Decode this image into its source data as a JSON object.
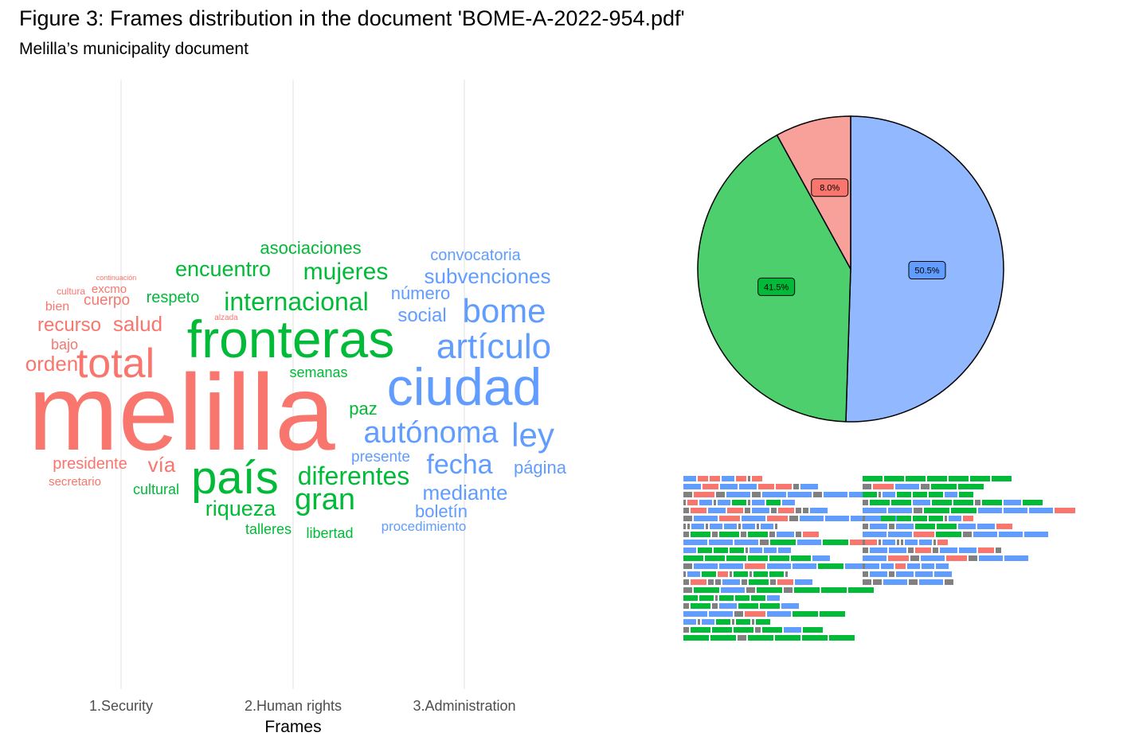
{
  "title": "Figure 3: Frames distribution in the document 'BOME-A-2022-954.pdf'",
  "subtitle": "Melilla’s municipality document",
  "chart_data": [
    {
      "type": "wordcloud",
      "xlabel": "Frames",
      "ylabel": "",
      "categories": [
        "1.Security",
        "2.Human rights",
        "3.Administration"
      ],
      "colors": {
        "1.Security": "#F8766D",
        "2.Human rights": "#00BA38",
        "3.Administration": "#619CFF"
      },
      "words": [
        {
          "text": "melilla",
          "frame": "1.Security"
        },
        {
          "text": "total",
          "frame": "1.Security"
        },
        {
          "text": "orden",
          "frame": "1.Security"
        },
        {
          "text": "recurso",
          "frame": "1.Security"
        },
        {
          "text": "salud",
          "frame": "1.Security"
        },
        {
          "text": "vía",
          "frame": "1.Security"
        },
        {
          "text": "presidente",
          "frame": "1.Security"
        },
        {
          "text": "cuerpo",
          "frame": "1.Security"
        },
        {
          "text": "bajo",
          "frame": "1.Security"
        },
        {
          "text": "bien",
          "frame": "1.Security"
        },
        {
          "text": "excmo",
          "frame": "1.Security"
        },
        {
          "text": "secretario",
          "frame": "1.Security"
        },
        {
          "text": "cultura",
          "frame": "1.Security"
        },
        {
          "text": "continuación",
          "frame": "1.Security"
        },
        {
          "text": "alzada",
          "frame": "1.Security"
        },
        {
          "text": "fronteras",
          "frame": "2.Human rights"
        },
        {
          "text": "país",
          "frame": "2.Human rights"
        },
        {
          "text": "internacional",
          "frame": "2.Human rights"
        },
        {
          "text": "mujeres",
          "frame": "2.Human rights"
        },
        {
          "text": "encuentro",
          "frame": "2.Human rights"
        },
        {
          "text": "diferentes",
          "frame": "2.Human rights"
        },
        {
          "text": "gran",
          "frame": "2.Human rights"
        },
        {
          "text": "riqueza",
          "frame": "2.Human rights"
        },
        {
          "text": "asociaciones",
          "frame": "2.Human rights"
        },
        {
          "text": "respeto",
          "frame": "2.Human rights"
        },
        {
          "text": "semanas",
          "frame": "2.Human rights"
        },
        {
          "text": "paz",
          "frame": "2.Human rights"
        },
        {
          "text": "cultural",
          "frame": "2.Human rights"
        },
        {
          "text": "talleres",
          "frame": "2.Human rights"
        },
        {
          "text": "libertad",
          "frame": "2.Human rights"
        },
        {
          "text": "ciudad",
          "frame": "3.Administration"
        },
        {
          "text": "artículo",
          "frame": "3.Administration"
        },
        {
          "text": "bome",
          "frame": "3.Administration"
        },
        {
          "text": "autónoma",
          "frame": "3.Administration"
        },
        {
          "text": "ley",
          "frame": "3.Administration"
        },
        {
          "text": "fecha",
          "frame": "3.Administration"
        },
        {
          "text": "subvenciones",
          "frame": "3.Administration"
        },
        {
          "text": "convocatoria",
          "frame": "3.Administration"
        },
        {
          "text": "número",
          "frame": "3.Administration"
        },
        {
          "text": "social",
          "frame": "3.Administration"
        },
        {
          "text": "mediante",
          "frame": "3.Administration"
        },
        {
          "text": "boletín",
          "frame": "3.Administration"
        },
        {
          "text": "página",
          "frame": "3.Administration"
        },
        {
          "text": "presente",
          "frame": "3.Administration"
        },
        {
          "text": "procedimiento",
          "frame": "3.Administration"
        }
      ]
    },
    {
      "type": "pie",
      "series": [
        {
          "category": "3.Administration",
          "value": 50.5,
          "label": "50.5%",
          "color": "#92B8FF"
        },
        {
          "category": "2.Human rights",
          "value": 41.5,
          "label": "41.5%",
          "color": "#4ECF6E"
        },
        {
          "category": "1.Security",
          "value": 8.0,
          "label": "8.0%",
          "color": "#F8A09A"
        }
      ],
      "label_colors": {
        "3.Administration": "#619CFF",
        "2.Human rights": "#00BA38",
        "1.Security": "#F8766D"
      }
    },
    {
      "type": "table",
      "description_of_cells": "sentence/frame mosaic; codes: 1=Security, 2=Human rights, 3=Administration, 0=none",
      "colors": {
        "0": "#808080",
        "1": "#F8766D",
        "2": "#00BA38",
        "3": "#619CFF"
      },
      "columns": [
        {
          "rows": [
            [
              3,
              1,
              1,
              3,
              1,
              0,
              1
            ],
            [
              3,
              1,
              3,
              3,
              1,
              1,
              0,
              3
            ],
            [
              0,
              1,
              0,
              3,
              0,
              3,
              3,
              0,
              3,
              3
            ],
            [
              0,
              1,
              3,
              0,
              3,
              2,
              0,
              3,
              2,
              3
            ],
            [
              0,
              1,
              3,
              1,
              0,
              3,
              0,
              1,
              0,
              0,
              3
            ],
            [
              0,
              3,
              1,
              3,
              1,
              0,
              3,
              3,
              3,
              3
            ],
            [
              0,
              0,
              3,
              0,
              3,
              3,
              0,
              3,
              0,
              3,
              0
            ],
            [
              0,
              2,
              0,
              2,
              0,
              2,
              0,
              3,
              0,
              1
            ],
            [
              3,
              3,
              3,
              0,
              2,
              3,
              2,
              1
            ],
            [
              3,
              2,
              2,
              2,
              0,
              3,
              3,
              3
            ],
            [
              2,
              2,
              2,
              2,
              2,
              2,
              3
            ],
            [
              0,
              3,
              3,
              1,
              3,
              3,
              2,
              3
            ],
            [
              0,
              3,
              2,
              1,
              0,
              2,
              0,
              2,
              2,
              0
            ],
            [
              0,
              1,
              0,
              0,
              3,
              0,
              2,
              0,
              1,
              3
            ],
            [
              0,
              2,
              3,
              0,
              2,
              0,
              2,
              2,
              2
            ],
            [
              2,
              2,
              0,
              2,
              2,
              2,
              3
            ],
            [
              0,
              2,
              0,
              3,
              2,
              2,
              3
            ],
            [
              3,
              3,
              0,
              1,
              3,
              2,
              2
            ],
            [
              3,
              0,
              3,
              2,
              0,
              2,
              0,
              2
            ],
            [
              0,
              2,
              2,
              2,
              0,
              2,
              3,
              2
            ],
            [
              2,
              2,
              0,
              2,
              2,
              2,
              2
            ]
          ]
        },
        {
          "rows": [
            [
              2,
              2,
              2,
              2,
              2,
              2,
              2
            ],
            [
              0,
              1,
              3,
              0,
              2,
              2
            ],
            [
              2,
              0,
              3,
              2,
              2,
              2,
              3,
              2
            ],
            [
              0,
              2,
              2,
              3,
              2,
              2,
              0,
              2,
              3,
              2
            ],
            [
              3,
              3,
              0,
              2,
              2,
              3,
              3,
              3,
              1
            ],
            [
              0,
              3,
              2,
              2,
              2,
              2,
              0,
              3,
              1
            ],
            [
              0,
              3,
              0,
              3,
              2,
              2,
              3,
              3,
              1
            ],
            [
              3,
              3,
              1,
              2,
              0,
              3,
              3,
              3
            ],
            [
              0,
              1,
              0,
              3,
              0,
              0,
              3,
              3,
              0,
              1
            ],
            [
              0,
              3,
              3,
              0,
              1,
              0,
              3,
              3,
              1,
              0
            ],
            [
              3,
              1,
              0,
              3,
              1,
              0,
              3,
              3
            ],
            [
              0,
              3,
              3,
              1,
              3,
              3,
              3
            ],
            [
              0,
              3,
              0,
              3,
              3,
              3
            ],
            [
              0,
              0,
              3,
              0,
              3,
              0
            ]
          ]
        }
      ]
    }
  ]
}
